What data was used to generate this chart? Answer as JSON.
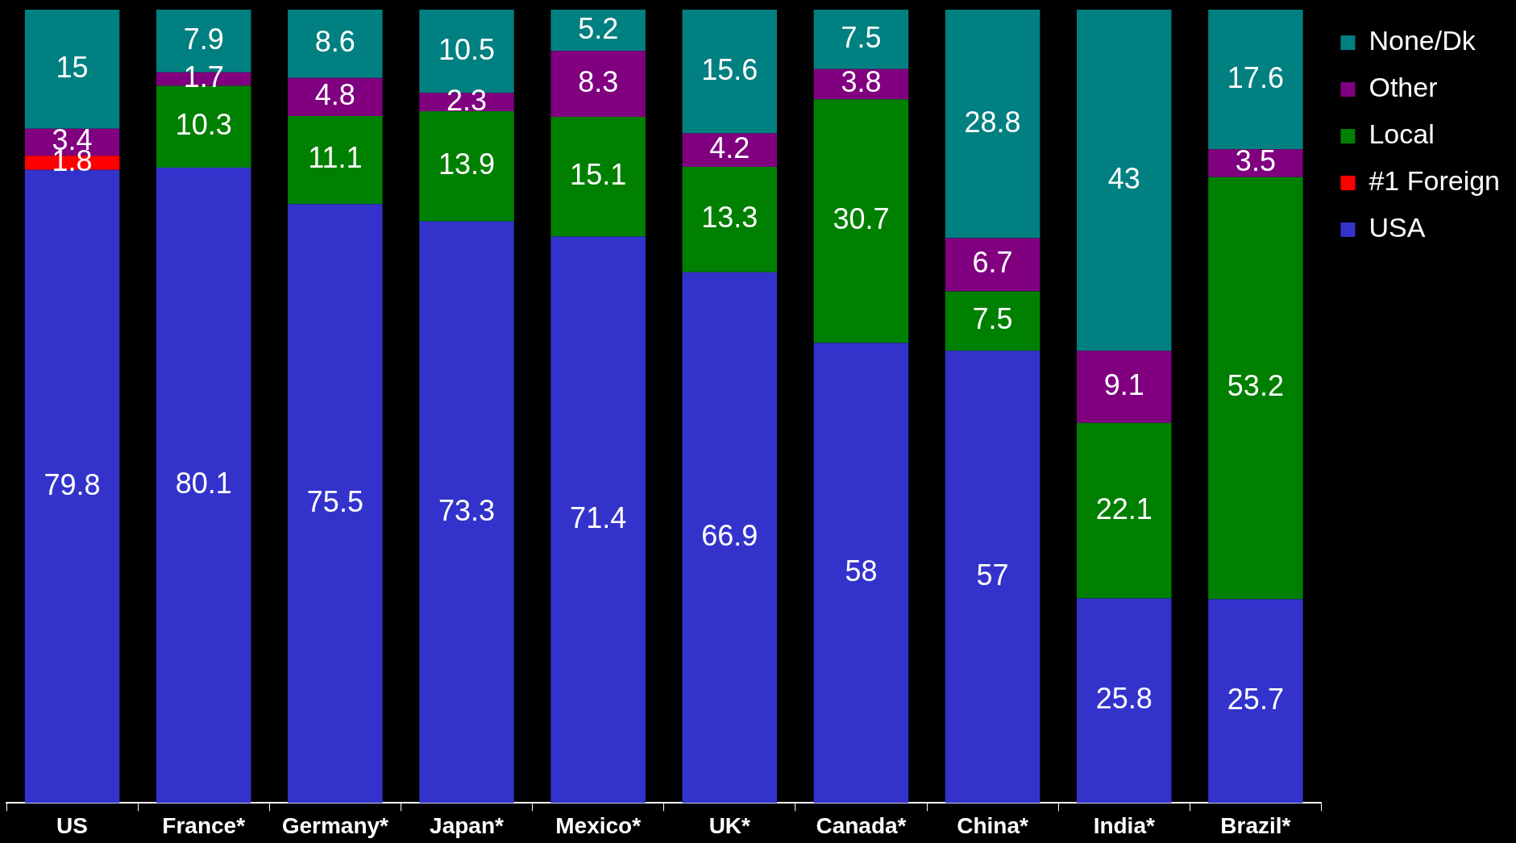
{
  "chart_data": {
    "type": "bar",
    "stacked": true,
    "categories": [
      "US",
      "France*",
      "Germany*",
      "Japan*",
      "Mexico*",
      "UK*",
      "Canada*",
      "China*",
      "India*",
      "Brazil*"
    ],
    "series": [
      {
        "name": "USA",
        "color": "#3333cc",
        "values": [
          79.8,
          80.1,
          75.5,
          73.3,
          71.4,
          66.9,
          58,
          57,
          25.8,
          25.7
        ]
      },
      {
        "name": "#1 Foreign",
        "color": "#ff0000",
        "values": [
          1.8,
          null,
          null,
          null,
          null,
          null,
          null,
          null,
          null,
          null
        ]
      },
      {
        "name": "Local",
        "color": "#008000",
        "values": [
          null,
          10.3,
          11.1,
          13.9,
          15.1,
          13.3,
          30.7,
          7.5,
          22.1,
          53.2
        ]
      },
      {
        "name": "Other",
        "color": "#800080",
        "values": [
          3.4,
          1.7,
          4.8,
          2.3,
          8.3,
          4.2,
          3.8,
          6.7,
          9.1,
          3.5
        ]
      },
      {
        "name": "None/Dk",
        "color": "#008080",
        "values": [
          15,
          7.9,
          8.6,
          10.5,
          5.2,
          15.6,
          7.5,
          28.8,
          43,
          17.6
        ]
      }
    ],
    "ylim": [
      0,
      100
    ],
    "tick_labels": "x",
    "grid": false,
    "legend": "top right",
    "data_labels": true
  }
}
